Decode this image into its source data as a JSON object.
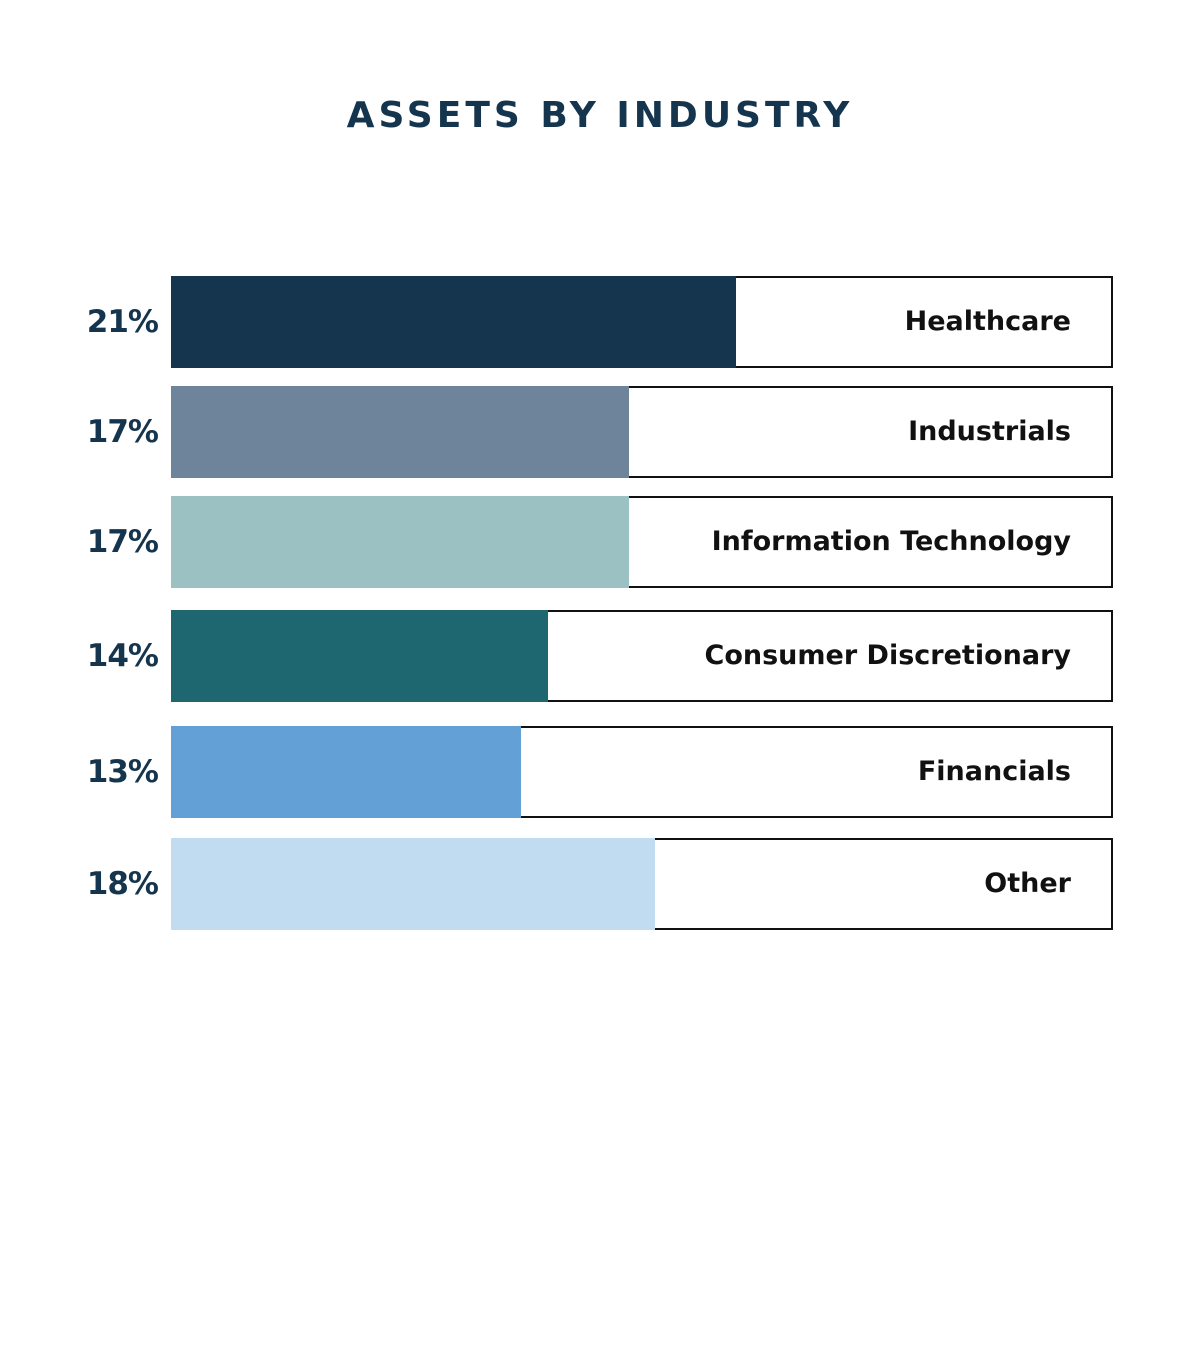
{
  "chart_data": {
    "type": "bar",
    "orientation": "horizontal",
    "title": "ASSETS BY INDUSTRY",
    "categories": [
      "Healthcare",
      "Industrials",
      "Information Technology",
      "Consumer Discretionary",
      "Financials",
      "Other"
    ],
    "values": [
      21,
      17,
      17,
      14,
      13,
      18
    ],
    "value_labels": [
      "21%",
      "17%",
      "17%",
      "14%",
      "13%",
      "18%"
    ],
    "colors": [
      "#14354d",
      "#6e849b",
      "#9bc1c2",
      "#1e6670",
      "#63a0d6",
      "#c1dbf1"
    ],
    "xlim": [
      0,
      35
    ],
    "grid": false,
    "legend": "none"
  }
}
